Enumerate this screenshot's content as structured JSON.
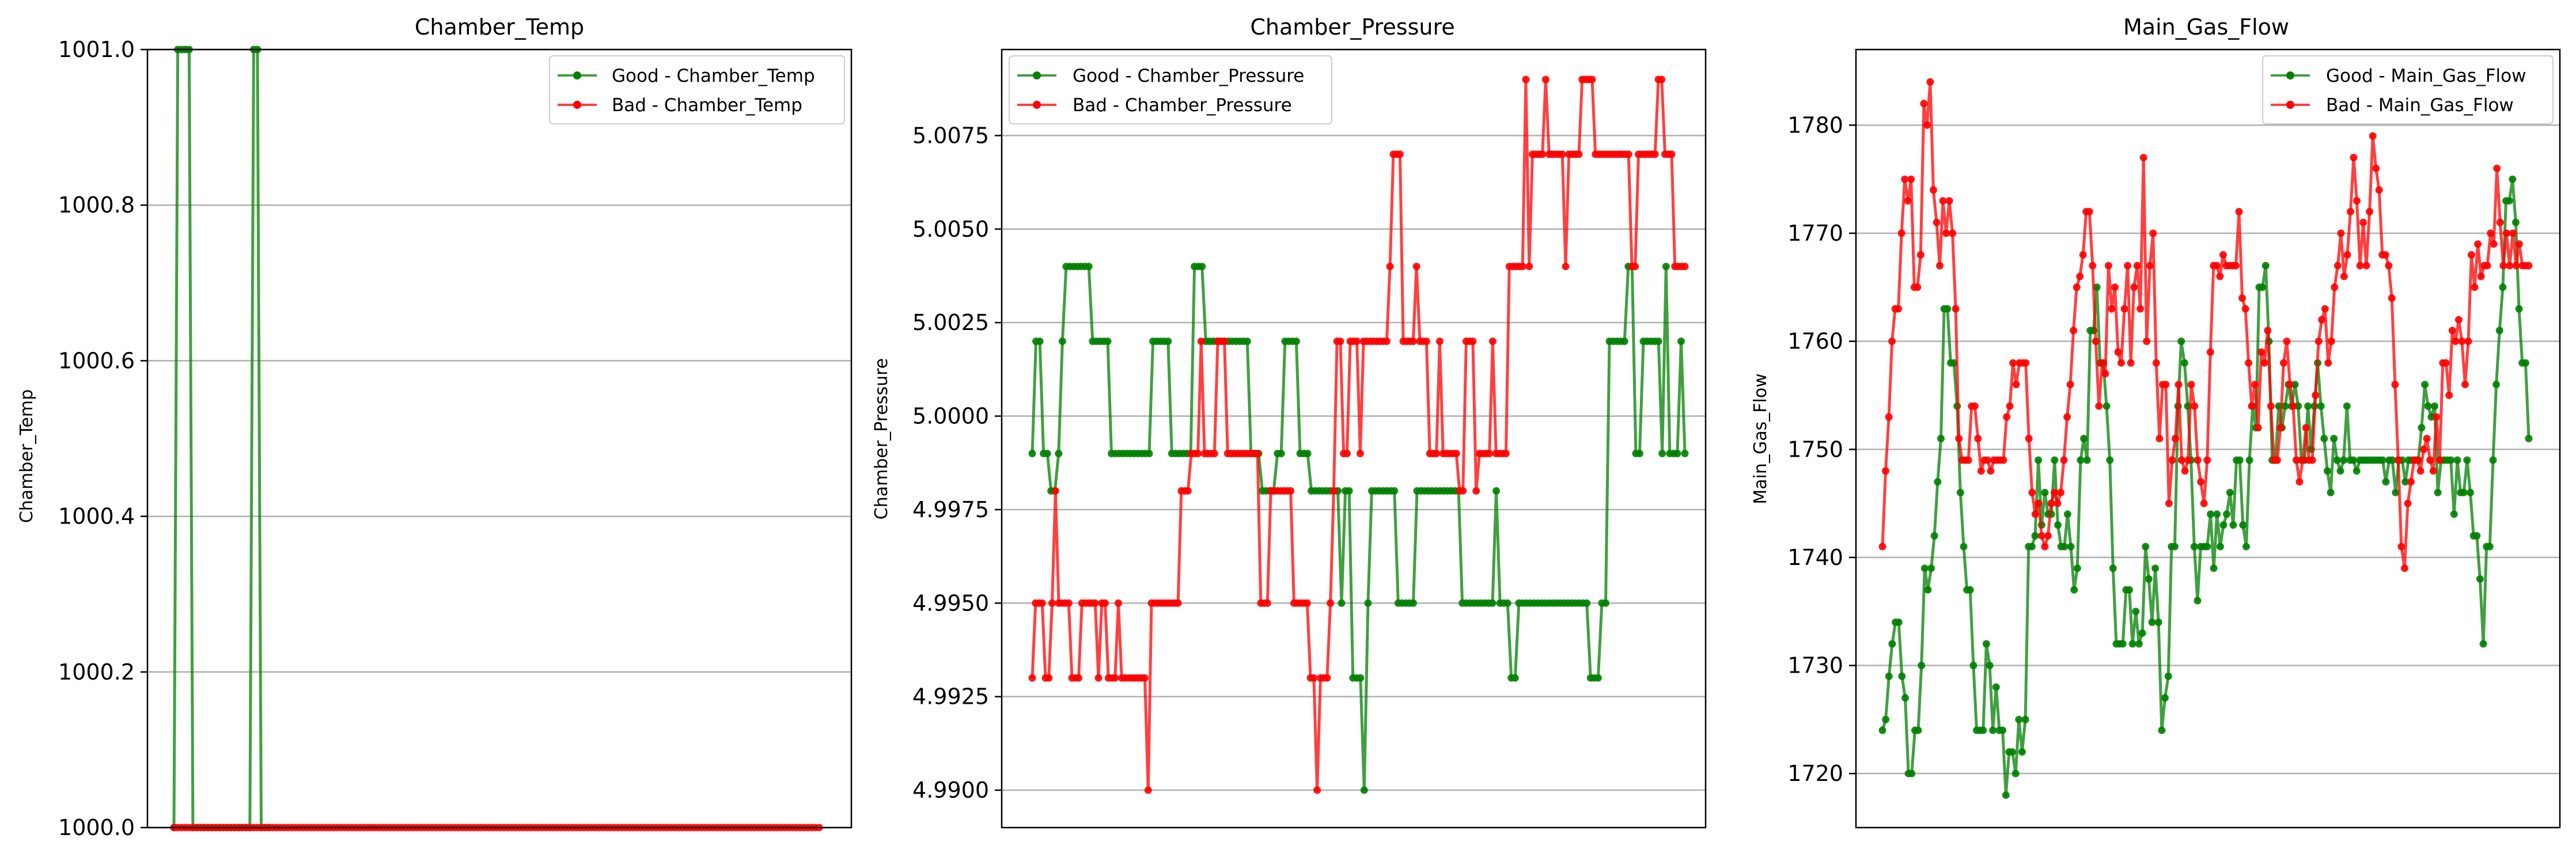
{
  "chart_data": [
    {
      "type": "line",
      "title": "Chamber_Temp",
      "xlabel": "",
      "ylabel": "Chamber_Temp",
      "ylim": [
        1000.0,
        1001.0
      ],
      "grid": "y",
      "legend_position": "top-right",
      "yticks": [
        1000.0,
        1000.2,
        1000.4,
        1000.6,
        1000.8,
        1001.0
      ],
      "ytick_labels": [
        "1000.0",
        "1000.2",
        "1000.4",
        "1000.6",
        "1000.8",
        "1001.0"
      ],
      "series": [
        {
          "name": "Good - Chamber_Temp",
          "color": "#008000",
          "x": [
            0,
            1,
            2,
            3,
            4,
            5,
            6,
            7,
            8,
            9,
            10,
            11,
            12,
            13,
            14,
            15,
            16,
            17,
            18,
            19,
            20,
            21,
            22,
            23,
            24,
            25
          ],
          "values": [
            1000.0,
            1001.0,
            1001.0,
            1001.0,
            1001.0,
            1000.0,
            1000.0,
            1000.0,
            1000.0,
            1000.0,
            1000.0,
            1000.0,
            1000.0,
            1000.0,
            1000.0,
            1000.0,
            1000.0,
            1000.0,
            1000.0,
            1000.0,
            1000.0,
            1001.0,
            1001.0,
            1000.0,
            1000.0,
            1000.0
          ]
        },
        {
          "name": "Bad - Chamber_Temp",
          "color": "#ff0000",
          "x_start": 0,
          "x_end": 170,
          "constant": 1000.0
        }
      ]
    },
    {
      "type": "line",
      "title": "Chamber_Pressure",
      "xlabel": "",
      "ylabel": "Chamber_Pressure",
      "ylim": [
        4.989,
        5.0098
      ],
      "grid": "y",
      "legend_position": "top-left",
      "yticks": [
        4.99,
        4.9925,
        4.995,
        4.9975,
        5.0,
        5.0025,
        5.005,
        5.0075
      ],
      "ytick_labels": [
        "4.9900",
        "4.9925",
        "4.9950",
        "4.9975",
        "5.0000",
        "5.0025",
        "5.0050",
        "5.0075"
      ],
      "series": [
        {
          "name": "Good - Chamber_Pressure",
          "color": "#008000",
          "values": [
            4.999,
            5.002,
            5.002,
            4.999,
            4.999,
            4.998,
            4.998,
            4.999,
            5.002,
            5.004,
            5.004,
            5.004,
            5.004,
            5.004,
            5.004,
            5.004,
            5.002,
            5.002,
            5.002,
            5.002,
            5.002,
            4.999,
            4.999,
            4.999,
            4.999,
            4.999,
            4.999,
            4.999,
            4.999,
            4.999,
            4.999,
            4.999,
            5.002,
            5.002,
            5.002,
            5.002,
            5.002,
            4.999,
            4.999,
            4.999,
            4.999,
            4.999,
            4.999,
            5.004,
            5.004,
            5.004,
            5.002,
            5.002,
            5.002,
            5.002,
            5.002,
            5.002,
            5.002,
            5.002,
            5.002,
            5.002,
            5.002,
            5.002,
            4.999,
            4.999,
            4.999,
            4.998,
            4.998,
            4.998,
            4.998,
            4.999,
            4.999,
            5.002,
            5.002,
            5.002,
            5.002,
            4.999,
            4.999,
            4.999,
            4.998,
            4.998,
            4.998,
            4.998,
            4.998,
            4.998,
            4.998,
            4.998,
            4.995,
            4.998,
            4.998,
            4.993,
            4.993,
            4.993,
            4.99,
            4.995,
            4.998,
            4.998,
            4.998,
            4.998,
            4.998,
            4.998,
            4.998,
            4.995,
            4.995,
            4.995,
            4.995,
            4.995,
            4.998,
            4.998,
            4.998,
            4.998,
            4.998,
            4.998,
            4.998,
            4.998,
            4.998,
            4.998,
            4.998,
            4.998,
            4.995,
            4.995,
            4.995,
            4.995,
            4.995,
            4.995,
            4.995,
            4.995,
            4.995,
            4.998,
            4.995,
            4.995,
            4.995,
            4.993,
            4.993,
            4.995,
            4.995,
            4.995,
            4.995,
            4.995,
            4.995,
            4.995,
            4.995,
            4.995,
            4.995,
            4.995,
            4.995,
            4.995,
            4.995,
            4.995,
            4.995,
            4.995,
            4.995,
            4.995,
            4.993,
            4.993,
            4.993,
            4.995,
            4.995,
            5.002,
            5.002,
            5.002,
            5.002,
            5.002,
            5.004,
            5.004,
            4.999,
            4.999,
            5.002,
            5.002,
            5.002,
            5.002,
            5.002,
            4.999,
            5.004,
            4.999,
            4.999,
            4.999,
            5.002,
            4.999
          ]
        },
        {
          "name": "Bad - Chamber_Pressure",
          "color": "#ff0000",
          "values": [
            4.993,
            4.995,
            4.995,
            4.995,
            4.993,
            4.993,
            4.995,
            4.998,
            4.995,
            4.995,
            4.995,
            4.995,
            4.993,
            4.993,
            4.993,
            4.995,
            4.995,
            4.995,
            4.995,
            4.995,
            4.993,
            4.995,
            4.995,
            4.993,
            4.993,
            4.993,
            4.995,
            4.993,
            4.993,
            4.993,
            4.993,
            4.993,
            4.993,
            4.993,
            4.993,
            4.99,
            4.995,
            4.995,
            4.995,
            4.995,
            4.995,
            4.995,
            4.995,
            4.995,
            4.995,
            4.998,
            4.998,
            4.998,
            4.999,
            4.999,
            4.999,
            5.002,
            4.999,
            4.999,
            4.999,
            4.999,
            5.002,
            5.002,
            5.002,
            4.999,
            4.999,
            4.999,
            4.999,
            4.999,
            4.999,
            4.999,
            4.999,
            4.999,
            4.999,
            4.995,
            4.995,
            4.995,
            4.998,
            4.998,
            4.998,
            4.998,
            4.998,
            4.998,
            4.998,
            4.995,
            4.995,
            4.995,
            4.995,
            4.995,
            4.993,
            4.993,
            4.99,
            4.993,
            4.993,
            4.993,
            4.995,
            4.998,
            5.002,
            5.002,
            4.999,
            4.999,
            5.002,
            5.002,
            5.002,
            4.999,
            5.002,
            5.002,
            5.002,
            5.002,
            5.002,
            5.002,
            5.002,
            5.002,
            5.004,
            5.007,
            5.007,
            5.007,
            5.002,
            5.002,
            5.002,
            5.002,
            5.004,
            5.002,
            5.002,
            5.002,
            4.999,
            4.999,
            4.999,
            5.002,
            4.999,
            4.999,
            4.999,
            4.999,
            4.999,
            4.998,
            4.998,
            5.002,
            5.002,
            5.002,
            4.998,
            4.999,
            4.999,
            4.999,
            4.999,
            5.002,
            4.999,
            4.999,
            4.999,
            4.999,
            5.004,
            5.004,
            5.004,
            5.004,
            5.004,
            5.009,
            5.004,
            5.007,
            5.007,
            5.007,
            5.007,
            5.009,
            5.007,
            5.007,
            5.007,
            5.007,
            5.007,
            5.004,
            5.007,
            5.007,
            5.007,
            5.007,
            5.009,
            5.009,
            5.009,
            5.009,
            5.007,
            5.007,
            5.007,
            5.007,
            5.007,
            5.007,
            5.007,
            5.007,
            5.007,
            5.007,
            5.007,
            5.004,
            5.004,
            5.007,
            5.007,
            5.007,
            5.007,
            5.007,
            5.007,
            5.009,
            5.009,
            5.007,
            5.007,
            5.007,
            5.004,
            5.004,
            5.004,
            5.004
          ]
        }
      ]
    },
    {
      "type": "line",
      "title": "Main_Gas_Flow",
      "xlabel": "",
      "ylabel": "Main_Gas_Flow",
      "ylim": [
        1715,
        1787
      ],
      "grid": "y",
      "legend_position": "top-right",
      "yticks": [
        1720,
        1730,
        1740,
        1750,
        1760,
        1770,
        1780
      ],
      "ytick_labels": [
        "1720",
        "1730",
        "1740",
        "1750",
        "1760",
        "1770",
        "1780"
      ],
      "series": [
        {
          "name": "Good - Main_Gas_Flow",
          "color": "#008000",
          "values": [
            1724,
            1725,
            1729,
            1732,
            1734,
            1734,
            1729,
            1727,
            1720,
            1720,
            1724,
            1724,
            1730,
            1739,
            1737,
            1739,
            1742,
            1747,
            1751,
            1763,
            1763,
            1758,
            1758,
            1754,
            1746,
            1741,
            1737,
            1737,
            1730,
            1724,
            1724,
            1724,
            1732,
            1730,
            1724,
            1728,
            1724,
            1724,
            1718,
            1722,
            1722,
            1720,
            1725,
            1722,
            1725,
            1741,
            1741,
            1742,
            1749,
            1743,
            1746,
            1744,
            1744,
            1749,
            1743,
            1741,
            1741,
            1744,
            1741,
            1737,
            1739,
            1749,
            1751,
            1749,
            1761,
            1761,
            1765,
            1758,
            1758,
            1754,
            1749,
            1739,
            1732,
            1732,
            1732,
            1737,
            1737,
            1732,
            1735,
            1732,
            1733,
            1741,
            1738,
            1734,
            1739,
            1734,
            1724,
            1727,
            1729,
            1741,
            1741,
            1754,
            1760,
            1758,
            1754,
            1749,
            1741,
            1736,
            1741,
            1741,
            1741,
            1744,
            1739,
            1744,
            1741,
            1743,
            1744,
            1746,
            1743,
            1749,
            1749,
            1743,
            1741,
            1749,
            1754,
            1752,
            1765,
            1765,
            1767,
            1760,
            1749,
            1749,
            1754,
            1752,
            1754,
            1756,
            1754,
            1756,
            1754,
            1749,
            1749,
            1754,
            1750,
            1754,
            1758,
            1754,
            1751,
            1748,
            1746,
            1751,
            1749,
            1748,
            1749,
            1754,
            1749,
            1749,
            1748,
            1749,
            1749,
            1749,
            1749,
            1749,
            1749,
            1749,
            1749,
            1747,
            1749,
            1749,
            1746,
            1749,
            1749,
            1747,
            1749,
            1749,
            1749,
            1749,
            1752,
            1756,
            1754,
            1753,
            1754,
            1746,
            1749,
            1749,
            1749,
            1749,
            1744,
            1749,
            1746,
            1746,
            1749,
            1746,
            1742,
            1742,
            1738,
            1732,
            1741,
            1741,
            1749,
            1756,
            1761,
            1765,
            1773,
            1773,
            1775,
            1771,
            1763,
            1758,
            1758,
            1751
          ]
        },
        {
          "name": "Bad - Main_Gas_Flow",
          "color": "#ff0000",
          "values": [
            1741,
            1748,
            1753,
            1760,
            1763,
            1763,
            1770,
            1775,
            1773,
            1775,
            1765,
            1765,
            1768,
            1782,
            1780,
            1784,
            1774,
            1771,
            1767,
            1773,
            1770,
            1773,
            1770,
            1763,
            1751,
            1749,
            1749,
            1749,
            1754,
            1754,
            1751,
            1748,
            1749,
            1749,
            1748,
            1749,
            1749,
            1749,
            1749,
            1753,
            1754,
            1758,
            1756,
            1758,
            1758,
            1758,
            1751,
            1746,
            1744,
            1745,
            1742,
            1741,
            1742,
            1745,
            1746,
            1745,
            1746,
            1749,
            1753,
            1756,
            1761,
            1765,
            1766,
            1768,
            1772,
            1772,
            1767,
            1760,
            1754,
            1758,
            1757,
            1767,
            1763,
            1765,
            1759,
            1758,
            1763,
            1767,
            1758,
            1765,
            1767,
            1763,
            1777,
            1760,
            1767,
            1770,
            1758,
            1751,
            1756,
            1756,
            1745,
            1749,
            1751,
            1756,
            1749,
            1748,
            1749,
            1756,
            1754,
            1749,
            1747,
            1745,
            1749,
            1759,
            1767,
            1767,
            1766,
            1768,
            1767,
            1767,
            1767,
            1767,
            1772,
            1764,
            1763,
            1758,
            1754,
            1756,
            1752,
            1759,
            1758,
            1761,
            1754,
            1749,
            1749,
            1752,
            1758,
            1760,
            1756,
            1754,
            1749,
            1747,
            1749,
            1752,
            1749,
            1749,
            1755,
            1760,
            1762,
            1763,
            1758,
            1760,
            1765,
            1767,
            1770,
            1766,
            1768,
            1772,
            1777,
            1773,
            1767,
            1771,
            1767,
            1772,
            1779,
            1776,
            1774,
            1768,
            1768,
            1767,
            1764,
            1756,
            1749,
            1741,
            1739,
            1745,
            1747,
            1749,
            1749,
            1748,
            1750,
            1751,
            1749,
            1748,
            1753,
            1749,
            1758,
            1758,
            1755,
            1761,
            1760,
            1762,
            1760,
            1756,
            1760,
            1768,
            1765,
            1769,
            1766,
            1767,
            1767,
            1770,
            1769,
            1776,
            1771,
            1767,
            1770,
            1767,
            1770,
            1767,
            1769,
            1767,
            1767,
            1767
          ]
        }
      ]
    }
  ]
}
